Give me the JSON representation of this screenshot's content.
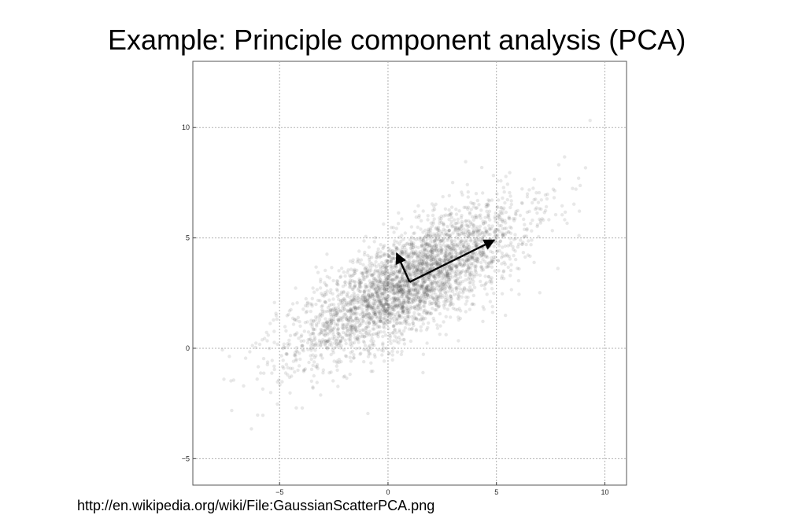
{
  "slide": {
    "title": "Example:  Principle component analysis (PCA)",
    "source": "http://en.wikipedia.org/wiki/File:GaussianScatterPCA.png"
  },
  "chart_data": {
    "type": "scatter",
    "title": "",
    "xlabel": "",
    "ylabel": "",
    "xlim": [
      -9,
      11
    ],
    "ylim": [
      -6.2,
      13
    ],
    "xticks": [
      -5,
      0,
      5,
      10
    ],
    "yticks": [
      -5,
      0,
      5,
      10
    ],
    "xtick_labels": [
      "−5",
      "0",
      "5",
      "10"
    ],
    "ytick_labels": [
      "−5",
      "0",
      "5",
      "10"
    ],
    "grid": true,
    "distribution": {
      "kind": "bivariate-gaussian",
      "mean": [
        1,
        3
      ],
      "principal_axes": [
        {
          "direction": [
            0.866,
            0.5
          ],
          "std": 3
        },
        {
          "direction": [
            -0.5,
            0.866
          ],
          "std": 1
        }
      ]
    },
    "arrows": [
      {
        "from": [
          1,
          3
        ],
        "to": [
          4.9,
          4.9
        ]
      },
      {
        "from": [
          1,
          3
        ],
        "to": [
          0.4,
          4.3
        ]
      }
    ],
    "colors": {
      "points": "#4a4a4a",
      "arrows": "#000000",
      "grid": "#b0b0b0",
      "frame": "#555555"
    }
  }
}
